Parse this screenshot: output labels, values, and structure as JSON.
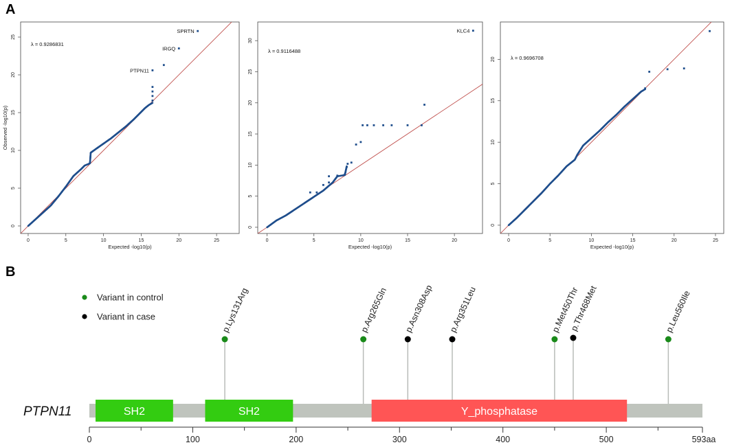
{
  "panel_labels": {
    "a": "A",
    "b": "B"
  },
  "chart_data": [
    {
      "type": "scatter",
      "title": "",
      "xlabel": "Expected  -log10(p)",
      "ylabel": "Observed  -log10(p)",
      "lambda_text": "λ = 0.9286831",
      "xlim": [
        -1,
        28
      ],
      "ylim": [
        -1,
        27
      ],
      "xticks": [
        0,
        5,
        10,
        15,
        20,
        25
      ],
      "yticks": [
        0,
        5,
        10,
        15,
        20,
        25
      ],
      "reference_line": "y = x",
      "bulk_points": [
        [
          0,
          0
        ],
        [
          1,
          0.9
        ],
        [
          2,
          1.8
        ],
        [
          3,
          2.7
        ],
        [
          4,
          3.9
        ],
        [
          5,
          5.2
        ],
        [
          6,
          6.6
        ],
        [
          7,
          7.5
        ],
        [
          7.5,
          8.0
        ],
        [
          8,
          8.2
        ],
        [
          8.2,
          8.3
        ],
        [
          8.3,
          9.7
        ],
        [
          9,
          10.2
        ],
        [
          10,
          10.9
        ],
        [
          11,
          11.6
        ],
        [
          12,
          12.4
        ],
        [
          13,
          13.2
        ],
        [
          14,
          14.1
        ],
        [
          15,
          15.1
        ],
        [
          15.5,
          15.6
        ],
        [
          16,
          16.0
        ],
        [
          16.5,
          16.3
        ]
      ],
      "points": [
        {
          "x": 16.5,
          "y": 16.6
        },
        {
          "x": 16.5,
          "y": 17.2
        },
        {
          "x": 16.5,
          "y": 17.8
        },
        {
          "x": 16.5,
          "y": 18.4
        },
        {
          "x": 16.5,
          "y": 20.6
        },
        {
          "x": 18.0,
          "y": 21.3
        },
        {
          "x": 20.0,
          "y": 23.5
        },
        {
          "x": 22.5,
          "y": 25.8
        }
      ],
      "labels": [
        {
          "text": "PTPN11",
          "x": 16.5,
          "y": 20.6
        },
        {
          "text": "IRGQ",
          "x": 20.0,
          "y": 23.5
        },
        {
          "text": "SPRTN",
          "x": 22.5,
          "y": 25.8
        }
      ]
    },
    {
      "type": "scatter",
      "title": "",
      "xlabel": "Expected  -log10(p)",
      "ylabel": "",
      "lambda_text": "λ = 0.9116488",
      "xlim": [
        -1,
        23
      ],
      "ylim": [
        -1,
        33
      ],
      "xticks": [
        0,
        5,
        10,
        15,
        20
      ],
      "yticks": [
        0,
        5,
        10,
        15,
        20,
        25,
        30
      ],
      "reference_line": "y = x",
      "bulk_points": [
        [
          0,
          0
        ],
        [
          1,
          1.1
        ],
        [
          2,
          1.9
        ],
        [
          3,
          2.9
        ],
        [
          4,
          3.9
        ],
        [
          5,
          4.9
        ],
        [
          6,
          5.9
        ],
        [
          7,
          7.2
        ],
        [
          7.5,
          8.2
        ],
        [
          8.3,
          8.4
        ],
        [
          8.5,
          9.8
        ]
      ],
      "points": [
        {
          "x": 4.6,
          "y": 5.6
        },
        {
          "x": 5.3,
          "y": 5.6
        },
        {
          "x": 6.0,
          "y": 6.8
        },
        {
          "x": 6.6,
          "y": 7.2
        },
        {
          "x": 6.6,
          "y": 8.2
        },
        {
          "x": 7.5,
          "y": 8.3
        },
        {
          "x": 8.3,
          "y": 8.5
        },
        {
          "x": 8.5,
          "y": 9.7
        },
        {
          "x": 8.6,
          "y": 10.2
        },
        {
          "x": 9.0,
          "y": 10.4
        },
        {
          "x": 9.5,
          "y": 13.3
        },
        {
          "x": 10.0,
          "y": 13.7
        },
        {
          "x": 10.2,
          "y": 16.4
        },
        {
          "x": 10.7,
          "y": 16.4
        },
        {
          "x": 11.4,
          "y": 16.4
        },
        {
          "x": 12.4,
          "y": 16.4
        },
        {
          "x": 13.3,
          "y": 16.4
        },
        {
          "x": 15.0,
          "y": 16.4
        },
        {
          "x": 16.5,
          "y": 16.4
        },
        {
          "x": 16.8,
          "y": 19.7
        },
        {
          "x": 22.0,
          "y": 31.6
        }
      ],
      "labels": [
        {
          "text": "KLC4",
          "x": 22.0,
          "y": 31.6
        }
      ]
    },
    {
      "type": "scatter",
      "title": "",
      "xlabel": "Expected  -log10(p)",
      "ylabel": "",
      "lambda_text": "λ = 0.9696708",
      "xlim": [
        -1,
        26
      ],
      "ylim": [
        -1,
        24.5
      ],
      "xticks": [
        0,
        5,
        10,
        15,
        20,
        25
      ],
      "yticks": [
        0,
        5,
        10,
        15,
        20
      ],
      "reference_line": "y = x",
      "bulk_points": [
        [
          0,
          0
        ],
        [
          1,
          0.9
        ],
        [
          2,
          1.9
        ],
        [
          3,
          2.9
        ],
        [
          4,
          3.9
        ],
        [
          5,
          5.0
        ],
        [
          6,
          6.0
        ],
        [
          7,
          7.1
        ],
        [
          8,
          7.9
        ],
        [
          8.3,
          8.5
        ],
        [
          9,
          9.6
        ],
        [
          10,
          10.5
        ],
        [
          11,
          11.4
        ],
        [
          12,
          12.4
        ],
        [
          13,
          13.3
        ],
        [
          14,
          14.3
        ],
        [
          15,
          15.2
        ],
        [
          16,
          16.1
        ],
        [
          16.5,
          16.4
        ]
      ],
      "points": [
        {
          "x": 16.5,
          "y": 16.5
        },
        {
          "x": 17.0,
          "y": 18.5
        },
        {
          "x": 19.2,
          "y": 18.8
        },
        {
          "x": 21.2,
          "y": 18.9
        },
        {
          "x": 24.3,
          "y": 23.4
        }
      ],
      "labels": []
    },
    {
      "type": "lollipop",
      "title": "",
      "xlabel": "",
      "ylabel": "",
      "gene": "PTPN11",
      "protein_length": 593,
      "xlim": [
        0,
        593
      ],
      "xticks": [
        0,
        100,
        200,
        300,
        400,
        500
      ],
      "xtick_end_label": "593aa",
      "domains": [
        {
          "name": "SH2",
          "start": 6,
          "end": 81,
          "color": "#33cc11"
        },
        {
          "name": "SH2",
          "start": 112,
          "end": 197,
          "color": "#33cc11"
        },
        {
          "name": "Y_phosphatase",
          "start": 273,
          "end": 520,
          "color": "#ff5555"
        }
      ],
      "legend": [
        {
          "label": "Variant in control",
          "color": "#1a8a1a"
        },
        {
          "label": "Variant in case",
          "color": "#000000"
        }
      ],
      "variants": [
        {
          "label": "p.Lys131Arg",
          "position": 131,
          "group": "control"
        },
        {
          "label": "p.Arg265Gln",
          "position": 265,
          "group": "control"
        },
        {
          "label": "p.Asn308Asp",
          "position": 308,
          "group": "case"
        },
        {
          "label": "p.Arg351Leu",
          "position": 351,
          "group": "case"
        },
        {
          "label": "p.Met450Thr",
          "position": 450,
          "group": "control"
        },
        {
          "label": "p.Thr468Met",
          "position": 468,
          "group": "case"
        },
        {
          "label": "p.Leu560Ile",
          "position": 560,
          "group": "control"
        }
      ]
    }
  ],
  "colors": {
    "points": "#1f4e8c",
    "refline": "#c0504d",
    "backbone": "#bfc4bd",
    "control": "#1a8a1a",
    "case": "#000000",
    "stem": "#b8bcb8"
  }
}
